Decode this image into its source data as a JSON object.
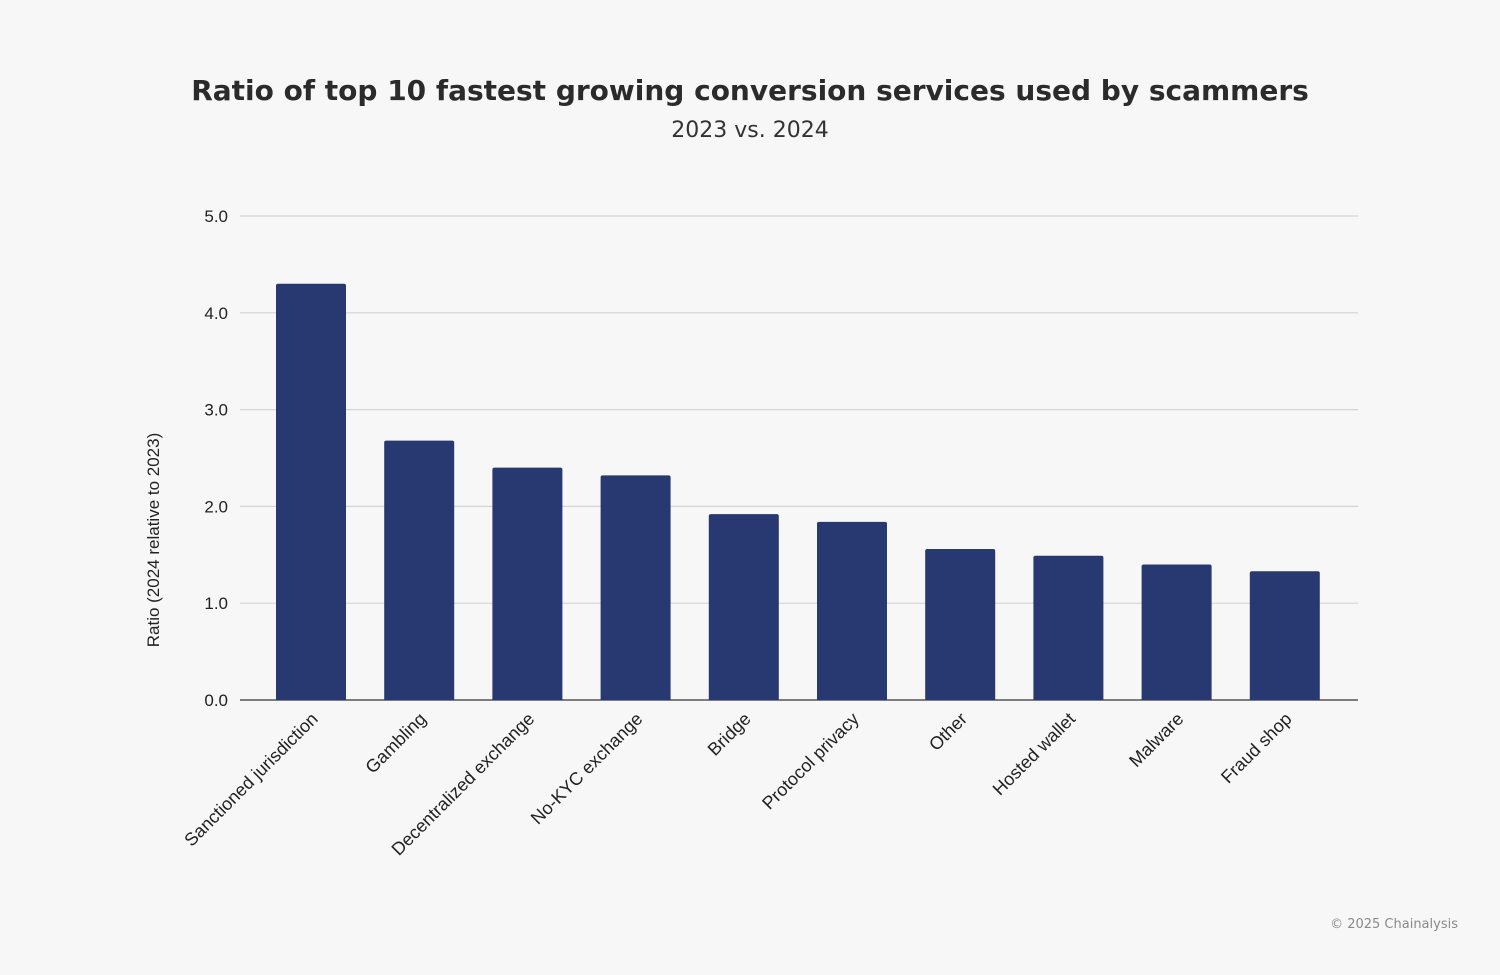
{
  "chart_data": {
    "type": "bar",
    "title": "Ratio of top 10 fastest growing conversion services used by scammers",
    "subtitle": "2023 vs. 2024",
    "xlabel": "",
    "ylabel": "Ratio (2024 relative to 2023)",
    "categories": [
      "Sanctioned jurisdiction",
      "Gambling",
      "Decentralized exchange",
      "No-KYC exchange",
      "Bridge",
      "Protocol privacy",
      "Other",
      "Hosted wallet",
      "Malware",
      "Fraud shop"
    ],
    "values": [
      4.3,
      2.68,
      2.4,
      2.32,
      1.92,
      1.84,
      1.56,
      1.49,
      1.4,
      1.33
    ],
    "ylim": [
      0,
      5
    ],
    "yticks": [
      "0.0",
      "1.0",
      "2.0",
      "3.0",
      "4.0",
      "5.0"
    ],
    "grid": true,
    "bar_color": "#283870"
  },
  "credit": "© 2025 Chainalysis"
}
